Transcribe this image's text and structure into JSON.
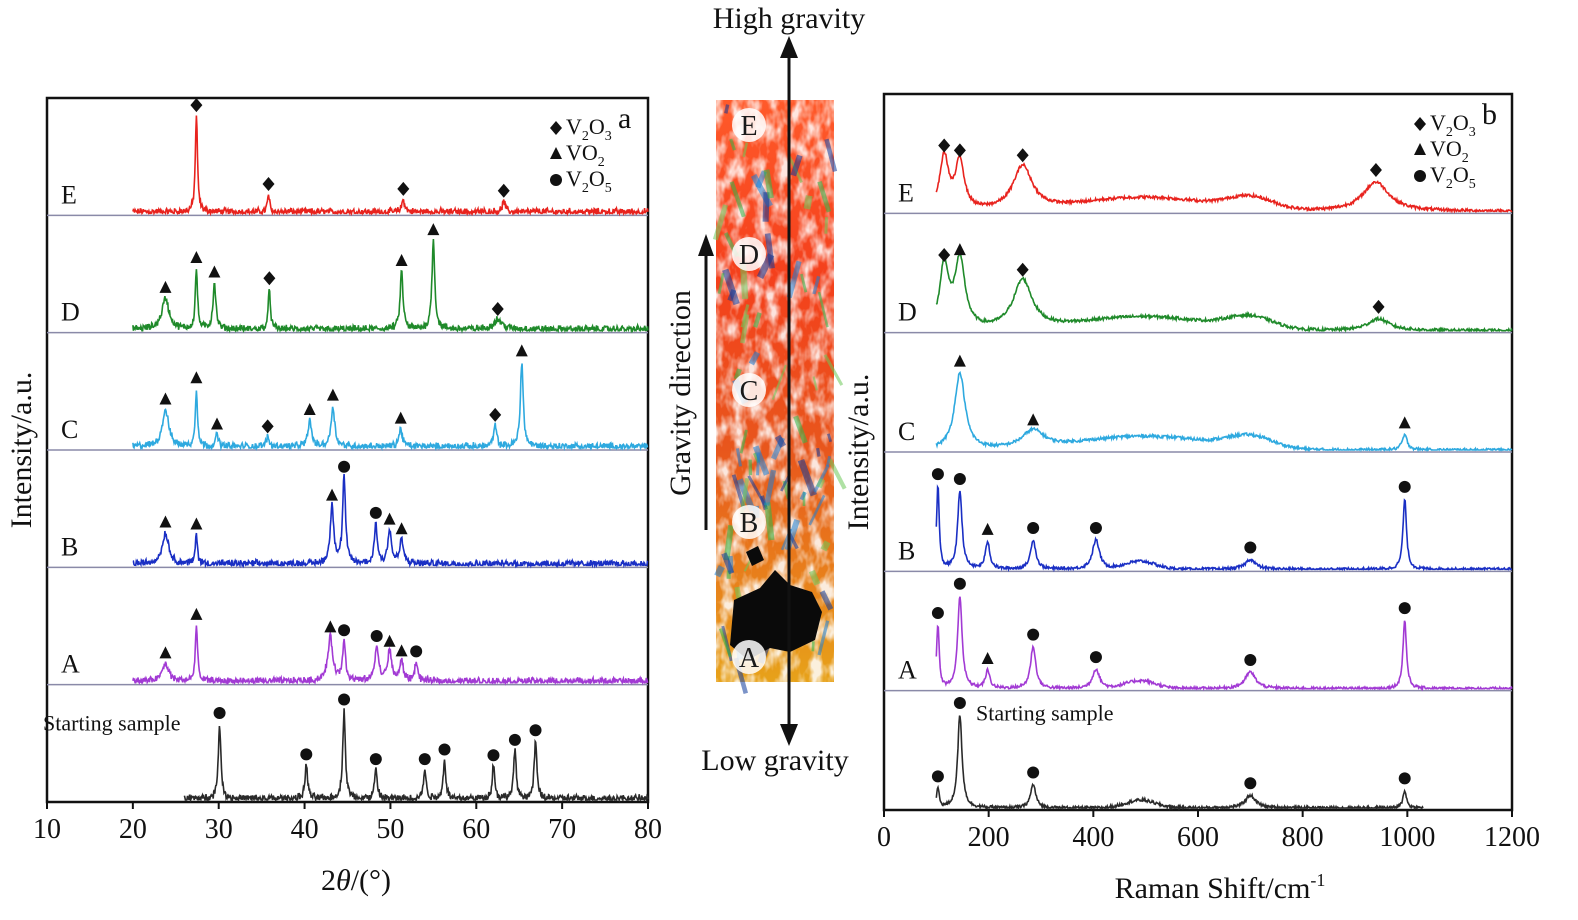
{
  "figure": {
    "high_gravity": "High gravity",
    "low_gravity": "Low gravity",
    "gravity_direction": "Gravity direction",
    "strip_letters": [
      "E",
      "D",
      "C",
      "B",
      "A"
    ],
    "colors": {
      "E": "#e8231e",
      "D": "#1f8a2a",
      "C": "#2ea9df",
      "B": "#1a2fc4",
      "A": "#a23ad4",
      "start": "#2a2a2a",
      "frame": "#111111",
      "baseline": "#8a8aa8"
    }
  },
  "chart_data": [
    {
      "type": "line",
      "panel_letter": "a",
      "xlabel_prefix": "2",
      "xlabel_symbol": "θ",
      "xlabel_suffix": "/(°)",
      "ylabel": "Intensity/a.u.",
      "xlim": [
        10,
        80
      ],
      "xticks": [
        "10",
        "20",
        "30",
        "40",
        "50",
        "60",
        "70",
        "80"
      ],
      "legend": [
        {
          "marker": "diamond",
          "label": "V",
          "sub1": "2",
          "mid": "O",
          "sub2": "3"
        },
        {
          "marker": "triangle",
          "label": "VO",
          "sub1": "2",
          "mid": "",
          "sub2": ""
        },
        {
          "marker": "circle",
          "label": "V",
          "sub1": "2",
          "mid": "O",
          "sub2": "5"
        }
      ],
      "series": [
        {
          "name": "E",
          "color_key": "E",
          "x_start": 20,
          "x_end": 80,
          "peaks": [
            {
              "x": 27.4,
              "h": 1.0,
              "w": 0.15,
              "m": "diamond"
            },
            {
              "x": 35.8,
              "h": 0.18,
              "w": 0.15,
              "m": "diamond"
            },
            {
              "x": 51.5,
              "h": 0.13,
              "w": 0.2,
              "m": "diamond"
            },
            {
              "x": 63.2,
              "h": 0.11,
              "w": 0.2,
              "m": "diamond"
            }
          ]
        },
        {
          "name": "D",
          "color_key": "D",
          "x_start": 20,
          "x_end": 80,
          "peaks": [
            {
              "x": 23.8,
              "h": 0.32,
              "w": 0.5,
              "m": "triangle"
            },
            {
              "x": 27.4,
              "h": 0.63,
              "w": 0.15,
              "m": "triangle"
            },
            {
              "x": 29.5,
              "h": 0.48,
              "w": 0.2,
              "m": "triangle"
            },
            {
              "x": 35.9,
              "h": 0.42,
              "w": 0.15,
              "m": "diamond"
            },
            {
              "x": 51.3,
              "h": 0.6,
              "w": 0.2,
              "m": "triangle"
            },
            {
              "x": 55.0,
              "h": 0.92,
              "w": 0.2,
              "m": "triangle"
            },
            {
              "x": 62.5,
              "h": 0.1,
              "w": 0.6,
              "m": "diamond"
            }
          ]
        },
        {
          "name": "C",
          "color_key": "C",
          "x_start": 20,
          "x_end": 80,
          "peaks": [
            {
              "x": 23.8,
              "h": 0.38,
              "w": 0.45,
              "m": "triangle"
            },
            {
              "x": 27.4,
              "h": 0.6,
              "w": 0.15,
              "m": "triangle"
            },
            {
              "x": 29.8,
              "h": 0.12,
              "w": 0.2,
              "m": "triangle"
            },
            {
              "x": 35.7,
              "h": 0.1,
              "w": 0.2,
              "m": "diamond"
            },
            {
              "x": 40.6,
              "h": 0.27,
              "w": 0.25,
              "m": "triangle"
            },
            {
              "x": 43.3,
              "h": 0.42,
              "w": 0.25,
              "m": "triangle"
            },
            {
              "x": 51.2,
              "h": 0.18,
              "w": 0.25,
              "m": "triangle"
            },
            {
              "x": 62.2,
              "h": 0.22,
              "w": 0.2,
              "m": "diamond"
            },
            {
              "x": 65.3,
              "h": 0.88,
              "w": 0.2,
              "m": "triangle"
            }
          ]
        },
        {
          "name": "B",
          "color_key": "B",
          "x_start": 20,
          "x_end": 80,
          "peaks": [
            {
              "x": 23.8,
              "h": 0.32,
              "w": 0.45,
              "m": "triangle"
            },
            {
              "x": 27.4,
              "h": 0.3,
              "w": 0.15,
              "m": "triangle"
            },
            {
              "x": 43.2,
              "h": 0.6,
              "w": 0.25,
              "m": "triangle"
            },
            {
              "x": 44.6,
              "h": 0.9,
              "w": 0.2,
              "m": "circle"
            },
            {
              "x": 48.3,
              "h": 0.42,
              "w": 0.2,
              "m": "circle"
            },
            {
              "x": 49.9,
              "h": 0.35,
              "w": 0.25,
              "m": "triangle"
            },
            {
              "x": 51.3,
              "h": 0.25,
              "w": 0.25,
              "m": "triangle"
            }
          ]
        },
        {
          "name": "A",
          "color_key": "A",
          "x_start": 20,
          "x_end": 80,
          "peaks": [
            {
              "x": 23.8,
              "h": 0.18,
              "w": 0.45,
              "m": "triangle"
            },
            {
              "x": 27.4,
              "h": 0.58,
              "w": 0.15,
              "m": "triangle"
            },
            {
              "x": 43.0,
              "h": 0.45,
              "w": 0.35,
              "m": "triangle"
            },
            {
              "x": 44.6,
              "h": 0.42,
              "w": 0.2,
              "m": "circle"
            },
            {
              "x": 48.4,
              "h": 0.36,
              "w": 0.25,
              "m": "circle"
            },
            {
              "x": 49.9,
              "h": 0.3,
              "w": 0.3,
              "m": "triangle"
            },
            {
              "x": 51.3,
              "h": 0.2,
              "w": 0.25,
              "m": "triangle"
            },
            {
              "x": 53.0,
              "h": 0.2,
              "w": 0.2,
              "m": "circle"
            }
          ]
        },
        {
          "name": "Starting sample",
          "color_key": "start",
          "x_start": 26,
          "x_end": 80,
          "peaks": [
            {
              "x": 30.1,
              "h": 0.78,
              "w": 0.18,
              "m": "circle"
            },
            {
              "x": 40.2,
              "h": 0.35,
              "w": 0.18,
              "m": "circle"
            },
            {
              "x": 44.6,
              "h": 0.92,
              "w": 0.18,
              "m": "circle"
            },
            {
              "x": 48.3,
              "h": 0.3,
              "w": 0.18,
              "m": "circle"
            },
            {
              "x": 54.0,
              "h": 0.3,
              "w": 0.18,
              "m": "circle"
            },
            {
              "x": 56.3,
              "h": 0.4,
              "w": 0.18,
              "m": "circle"
            },
            {
              "x": 62.0,
              "h": 0.34,
              "w": 0.18,
              "m": "circle"
            },
            {
              "x": 64.5,
              "h": 0.5,
              "w": 0.18,
              "m": "circle"
            },
            {
              "x": 66.9,
              "h": 0.6,
              "w": 0.18,
              "m": "circle"
            }
          ]
        }
      ]
    },
    {
      "type": "line",
      "panel_letter": "b",
      "xlabel": "Raman Shift/cm",
      "xlabel_sup": "-1",
      "ylabel": "Intensity/a.u.",
      "xlim": [
        0,
        1200
      ],
      "xticks": [
        "0",
        "200",
        "400",
        "600",
        "800",
        "1000",
        "1200"
      ],
      "legend": [
        {
          "marker": "diamond",
          "label": "V",
          "sub1": "2",
          "mid": "O",
          "sub2": "3"
        },
        {
          "marker": "triangle",
          "label": "VO",
          "sub1": "2",
          "mid": "",
          "sub2": ""
        },
        {
          "marker": "circle",
          "label": "V",
          "sub1": "2",
          "mid": "O",
          "sub2": "5"
        }
      ],
      "series": [
        {
          "name": "E",
          "color_key": "E",
          "x_start": 100,
          "x_end": 1200,
          "peaks": [
            {
              "x": 115,
              "h": 0.55,
              "w": 10,
              "m": "diamond"
            },
            {
              "x": 145,
              "h": 0.5,
              "w": 10,
              "m": "diamond"
            },
            {
              "x": 265,
              "h": 0.45,
              "w": 22,
              "m": "diamond"
            },
            {
              "x": 940,
              "h": 0.3,
              "w": 30,
              "m": "diamond"
            }
          ]
        },
        {
          "name": "D",
          "color_key": "D",
          "x_start": 100,
          "x_end": 1200,
          "peaks": [
            {
              "x": 115,
              "h": 0.65,
              "w": 10,
              "m": "diamond"
            },
            {
              "x": 145,
              "h": 0.7,
              "w": 12,
              "m": "triangle"
            },
            {
              "x": 265,
              "h": 0.5,
              "w": 22,
              "m": "diamond"
            },
            {
              "x": 945,
              "h": 0.12,
              "w": 25,
              "m": "diamond"
            }
          ]
        },
        {
          "name": "C",
          "color_key": "C",
          "x_start": 100,
          "x_end": 1200,
          "peaks": [
            {
              "x": 145,
              "h": 0.78,
              "w": 12,
              "m": "triangle"
            },
            {
              "x": 285,
              "h": 0.18,
              "w": 25,
              "m": "triangle"
            },
            {
              "x": 995,
              "h": 0.15,
              "w": 6,
              "m": "triangle"
            }
          ]
        },
        {
          "name": "B",
          "color_key": "B",
          "x_start": 100,
          "x_end": 1200,
          "peaks": [
            {
              "x": 103,
              "h": 0.85,
              "w": 3,
              "m": "circle"
            },
            {
              "x": 145,
              "h": 0.8,
              "w": 5,
              "m": "circle"
            },
            {
              "x": 198,
              "h": 0.28,
              "w": 5,
              "m": "triangle"
            },
            {
              "x": 285,
              "h": 0.3,
              "w": 6,
              "m": "circle"
            },
            {
              "x": 405,
              "h": 0.3,
              "w": 8,
              "m": "circle"
            },
            {
              "x": 700,
              "h": 0.1,
              "w": 12,
              "m": "circle"
            },
            {
              "x": 995,
              "h": 0.72,
              "w": 4,
              "m": "circle"
            }
          ]
        },
        {
          "name": "A",
          "color_key": "A",
          "x_start": 100,
          "x_end": 1200,
          "peaks": [
            {
              "x": 103,
              "h": 0.65,
              "w": 3,
              "m": "circle"
            },
            {
              "x": 145,
              "h": 0.95,
              "w": 5,
              "m": "circle"
            },
            {
              "x": 198,
              "h": 0.18,
              "w": 5,
              "m": "triangle"
            },
            {
              "x": 285,
              "h": 0.43,
              "w": 6,
              "m": "circle"
            },
            {
              "x": 405,
              "h": 0.2,
              "w": 8,
              "m": "circle"
            },
            {
              "x": 700,
              "h": 0.17,
              "w": 12,
              "m": "circle"
            },
            {
              "x": 995,
              "h": 0.7,
              "w": 4,
              "m": "circle"
            }
          ]
        },
        {
          "name": "Starting sample",
          "color_key": "start",
          "x_start": 100,
          "x_end": 1030,
          "peaks": [
            {
              "x": 103,
              "h": 0.2,
              "w": 3,
              "m": "circle"
            },
            {
              "x": 145,
              "h": 0.95,
              "w": 5,
              "m": "circle"
            },
            {
              "x": 285,
              "h": 0.24,
              "w": 6,
              "m": "circle"
            },
            {
              "x": 700,
              "h": 0.13,
              "w": 12,
              "m": "circle"
            },
            {
              "x": 995,
              "h": 0.18,
              "w": 4,
              "m": "circle"
            }
          ]
        }
      ]
    }
  ]
}
